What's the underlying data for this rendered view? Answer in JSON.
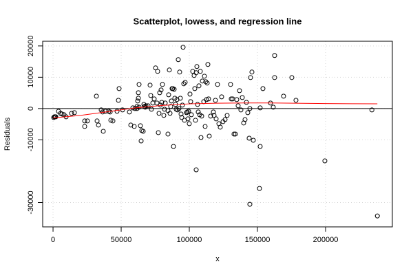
{
  "chart_data": {
    "type": "scatter",
    "title": "Scatterplot, lowess, and regression line",
    "xlabel": "x",
    "ylabel": "Residuals",
    "xlim": [
      -7600,
      249000
    ],
    "ylim": [
      -37800,
      21500
    ],
    "xticks": [
      0,
      50000,
      100000,
      150000,
      200000
    ],
    "yticks": [
      -30000,
      -10000,
      0,
      10000,
      20000
    ],
    "grid": true,
    "hline": 0,
    "color": "#000000",
    "x": [
      505,
      1515,
      1010,
      2020,
      4040,
      5555,
      6565,
      9595,
      13635,
      15655,
      8080,
      23230,
      23230,
      25250,
      31815,
      32320,
      33330,
      35350,
      36360,
      36865,
      38380,
      40905,
      41915,
      42420,
      43935,
      46965,
      47975,
      48480,
      51005,
      56055,
      57065,
      58580,
      59590,
      60095,
      61610,
      61610,
      62115,
      63125,
      62620,
      62620,
      63125,
      64135,
      64640,
      65145,
      66155,
      66660,
      67165,
      67670,
      68175,
      69690,
      71205,
      71710,
      72215,
      73225,
      74235,
      75245,
      76760,
      76255,
      77265,
      77770,
      78275,
      78780,
      79285,
      79790,
      80295,
      81305,
      81810,
      82315,
      84335,
      84840,
      85345,
      85850,
      86355,
      86860,
      87365,
      87870,
      88375,
      88880,
      89385,
      89890,
      90395,
      90900,
      91405,
      91910,
      92415,
      92920,
      93425,
      93930,
      94435,
      94940,
      95445,
      95950,
      96455,
      96960,
      97970,
      98475,
      98980,
      99485,
      99990,
      100495,
      101000,
      101505,
      102515,
      103525,
      104030,
      104535,
      105040,
      105545,
      106050,
      106555,
      107060,
      107565,
      108070,
      108575,
      109080,
      109585,
      110595,
      111100,
      111605,
      112110,
      112615,
      113120,
      113625,
      114130,
      114635,
      115645,
      117665,
      118170,
      119180,
      119685,
      120695,
      121705,
      122715,
      123725,
      124735,
      126250,
      127765,
      130290,
      130795,
      131805,
      132815,
      133825,
      134835,
      135845,
      136855,
      137865,
      138875,
      139885,
      140895,
      141905,
      142915,
      143925,
      144430,
      144935,
      145945,
      146955,
      151500,
      152005,
      152005,
      154025,
      159580,
      161600,
      162610,
      162610,
      169175,
      175235,
      178265,
      199475,
      234000,
      238000,
      144430,
      105040,
      84335
    ],
    "values": [
      -2860,
      -2640,
      -2640,
      -2640,
      -880,
      -1540,
      -1760,
      -2640,
      -1540,
      -1320,
      -1980,
      -3960,
      -5720,
      -3960,
      3960,
      -3960,
      -5280,
      -440,
      -1100,
      -7260,
      -880,
      -880,
      -1100,
      -3740,
      -3960,
      -880,
      2640,
      6380,
      -440,
      -1100,
      -5280,
      220,
      -5720,
      0,
      660,
      0,
      2420,
      440,
      3300,
      5060,
      7700,
      -5500,
      -10340,
      -7040,
      -7260,
      1320,
      660,
      440,
      880,
      880,
      7480,
      4180,
      -220,
      1760,
      3080,
      12980,
      11880,
      1760,
      -7700,
      -1540,
      5060,
      1100,
      5940,
      1980,
      7700,
      -2200,
      -220,
      1760,
      -660,
      4400,
      12320,
      -1540,
      660,
      2420,
      6380,
      6380,
      -12100,
      6160,
      3300,
      1320,
      -220,
      2860,
      -440,
      15620,
      0,
      11660,
      3300,
      -1760,
      -2860,
      1100,
      19580,
      7920,
      -3740,
      8360,
      -1320,
      -1100,
      -3300,
      -880,
      -4840,
      4620,
      2200,
      -1980,
      11880,
      10560,
      6380,
      -3740,
      11440,
      13420,
      1320,
      -1100,
      7260,
      -1980,
      11880,
      -9240,
      -2420,
      8800,
      2200,
      10340,
      -5720,
      8580,
      2860,
      8140,
      14080,
      3080,
      -8800,
      -2420,
      -1100,
      -2200,
      2640,
      -3300,
      7700,
      -4840,
      -5940,
      3740,
      -4180,
      -3520,
      -2200,
      7700,
      3080,
      3080,
      -8140,
      -8140,
      2860,
      880,
      5720,
      -440,
      3520,
      -4620,
      -3520,
      1980,
      -1320,
      -9460,
      0,
      9900,
      11660,
      -10120,
      -25520,
      -12100,
      220,
      6380,
      1760,
      440,
      9900,
      16940,
      3960,
      9900,
      2640,
      -16720,
      -440,
      -34320,
      -30580,
      -19580,
      -8140
    ],
    "lowess": {
      "color": "#ff0000",
      "x": [
        0,
        20000,
        40000,
        60000,
        80000,
        100000,
        120000,
        140000,
        160000,
        200000,
        238000
      ],
      "values": [
        -3000,
        -2200,
        -1000,
        200,
        1000,
        1500,
        1700,
        1800,
        1800,
        1600,
        1500
      ]
    }
  }
}
